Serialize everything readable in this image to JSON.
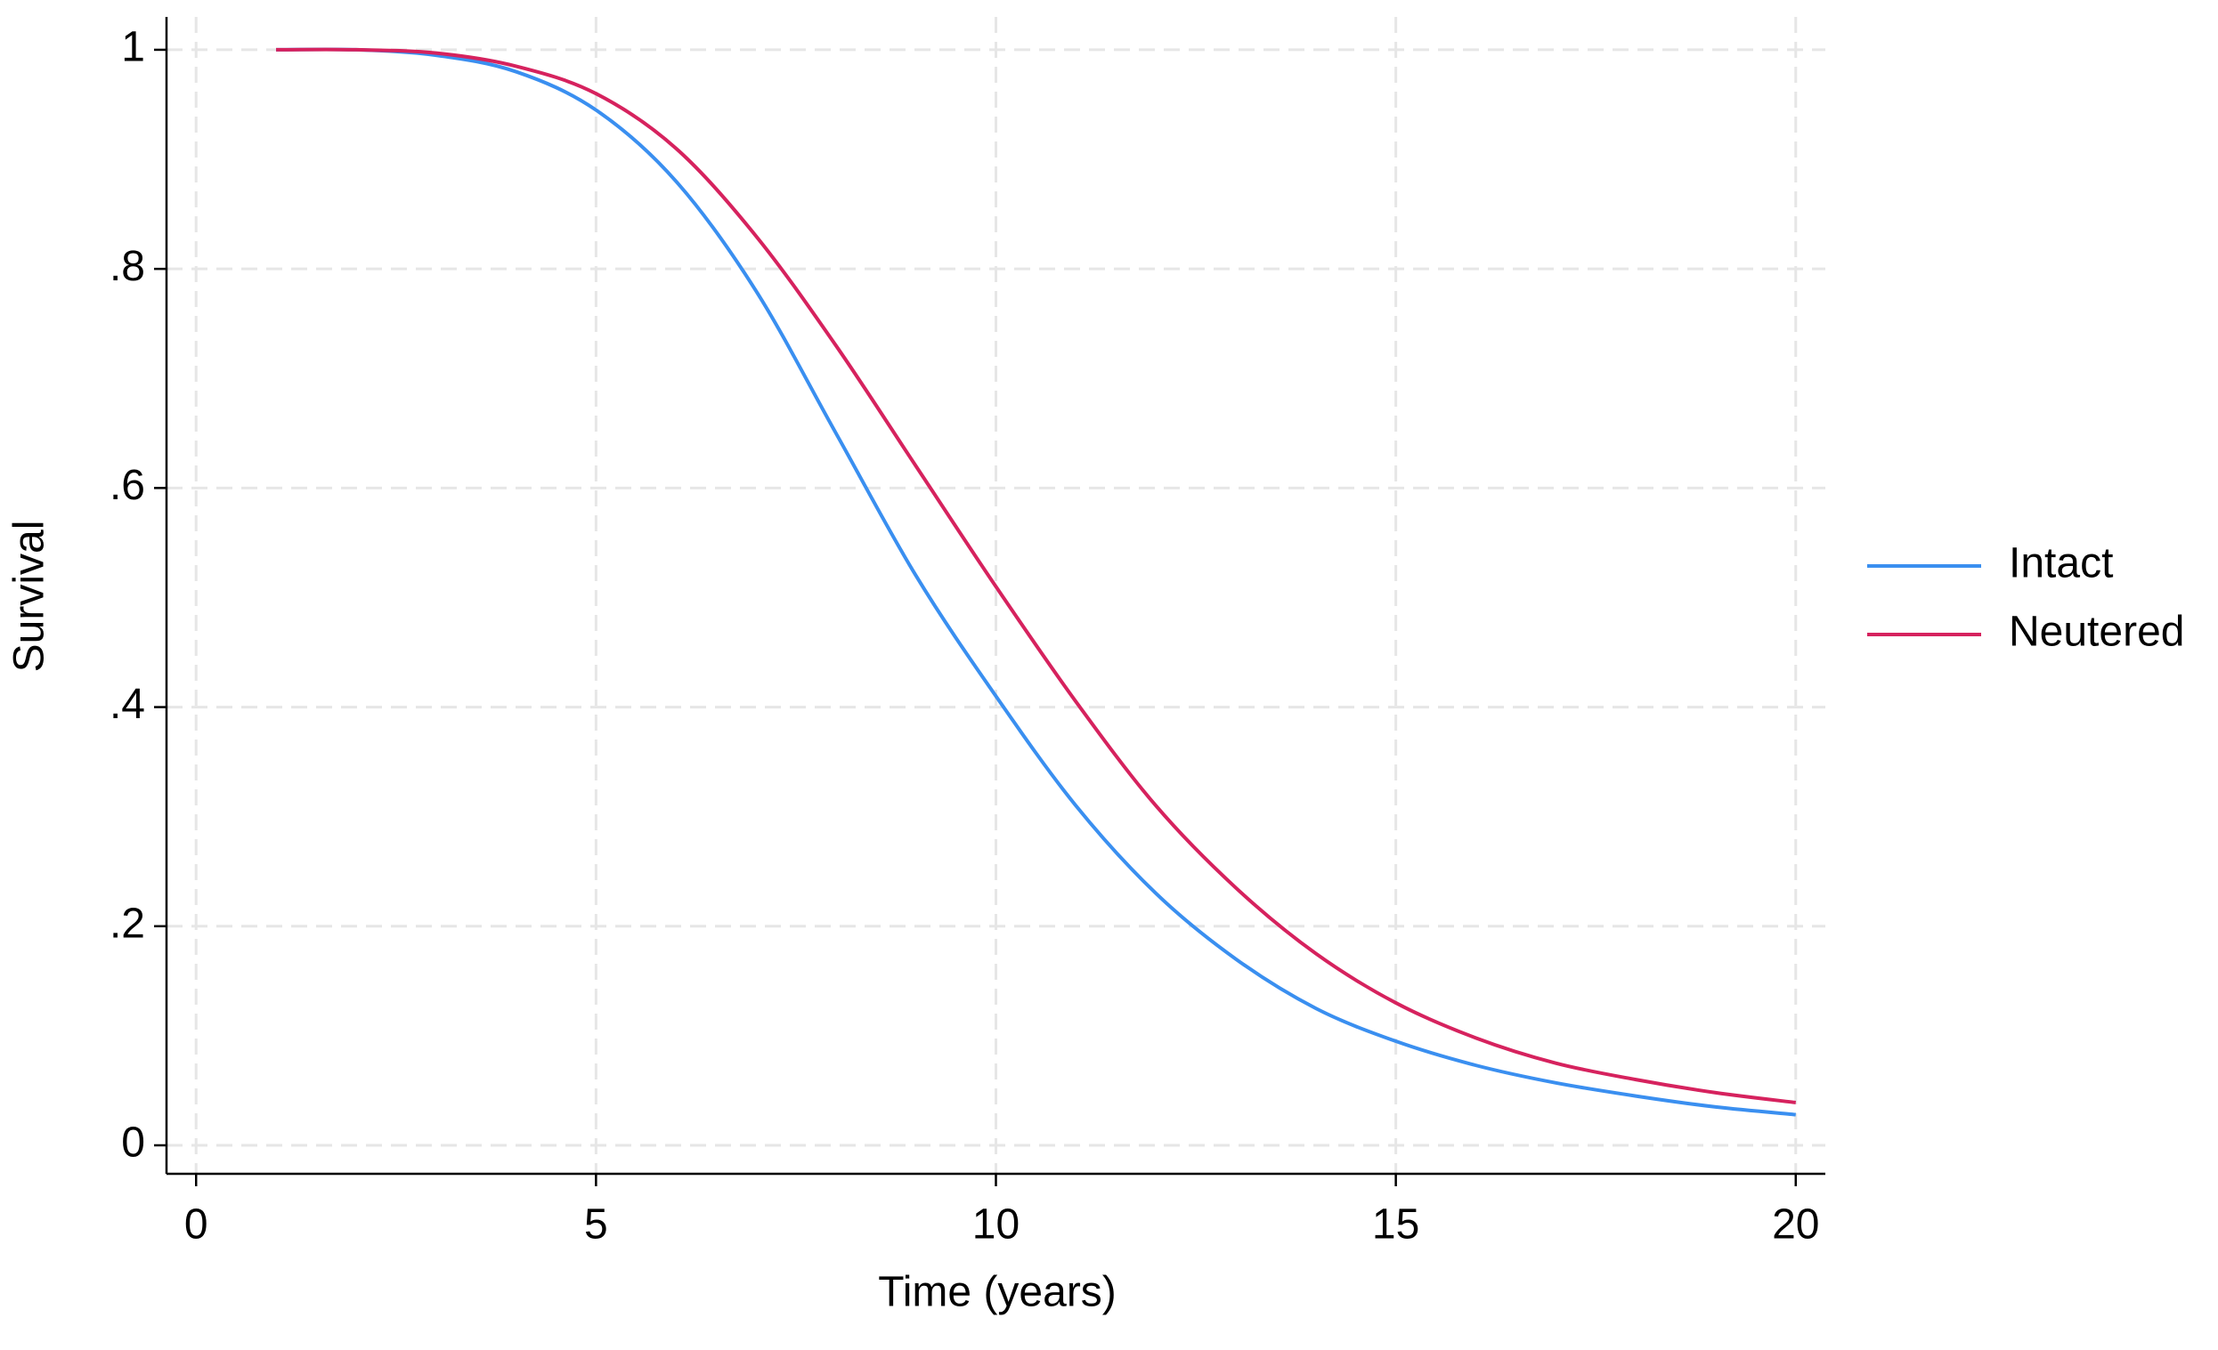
{
  "chart_data": {
    "type": "line",
    "x_label": "Time (years)",
    "y_label": "Survival",
    "x": [
      1,
      2,
      3,
      4,
      5,
      6,
      7,
      8,
      9,
      10,
      11,
      12,
      13,
      14,
      15,
      16,
      17,
      18,
      19,
      20
    ],
    "series": [
      {
        "name": "Intact",
        "color": "#3a8ff0",
        "values": [
          1.0,
          1.0,
          0.995,
          0.98,
          0.945,
          0.88,
          0.78,
          0.65,
          0.52,
          0.41,
          0.31,
          0.23,
          0.17,
          0.125,
          0.095,
          0.073,
          0.057,
          0.045,
          0.035,
          0.028
        ]
      },
      {
        "name": "Neutered",
        "color": "#d6225e",
        "values": [
          1.0,
          1.0,
          0.997,
          0.985,
          0.96,
          0.91,
          0.83,
          0.73,
          0.62,
          0.51,
          0.405,
          0.31,
          0.235,
          0.175,
          0.13,
          0.098,
          0.075,
          0.06,
          0.048,
          0.039
        ]
      }
    ],
    "xlim": [
      -0.37,
      20.37
    ],
    "ylim": [
      -0.026,
      1.03
    ],
    "xticks": [
      0,
      5,
      10,
      15,
      20
    ],
    "yticks": [
      0,
      {
        "value": 0.2,
        "label": ".2"
      },
      {
        "value": 0.4,
        "label": ".4"
      },
      {
        "value": 0.6,
        "label": ".6"
      },
      {
        "value": 0.8,
        "label": ".8"
      },
      1
    ],
    "grid": true,
    "legend": "right"
  }
}
